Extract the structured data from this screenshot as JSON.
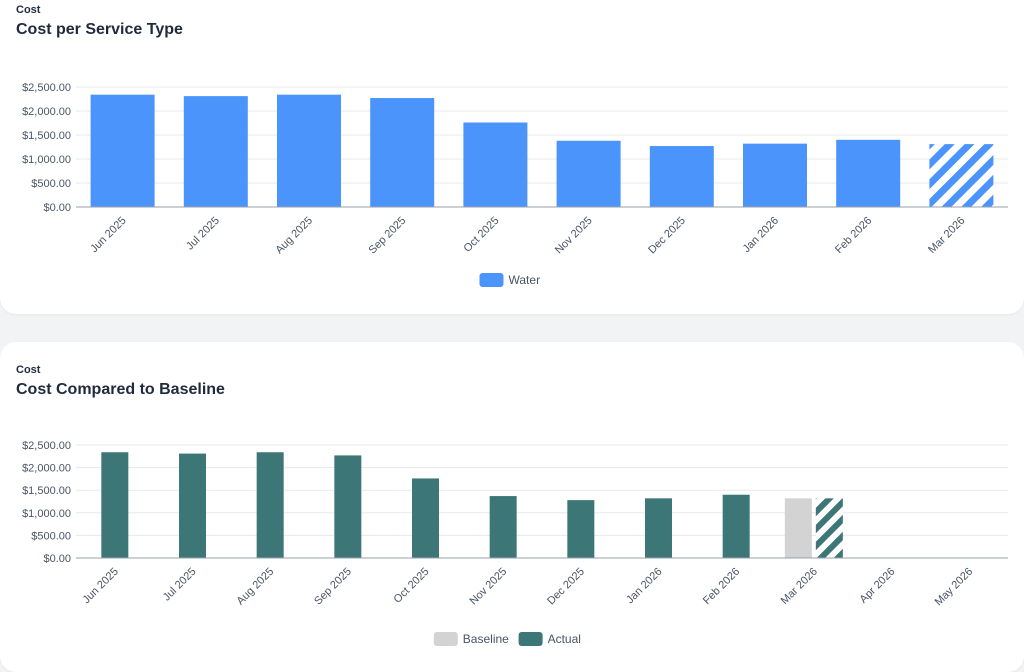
{
  "cards": [
    {
      "eyebrow": "Cost",
      "title": "Cost per Service Type"
    },
    {
      "eyebrow": "Cost",
      "title": "Cost Compared to Baseline"
    }
  ],
  "chart_data": [
    {
      "type": "bar",
      "title": "Cost per Service Type",
      "categories": [
        "Jun 2025",
        "Jul 2025",
        "Aug 2025",
        "Sep 2025",
        "Oct 2025",
        "Nov 2025",
        "Dec 2025",
        "Jan 2026",
        "Feb 2026",
        "Mar 2026"
      ],
      "series": [
        {
          "name": "Water",
          "color": "#4b94fb",
          "values": [
            2340,
            2310,
            2340,
            2270,
            1760,
            1380,
            1270,
            1320,
            1400,
            1310
          ]
        }
      ],
      "projected_categories": [
        "Mar 2026"
      ],
      "ylim": [
        0,
        2500
      ],
      "yticks": [
        "$0.00",
        "$500.00",
        "$1,000.00",
        "$1,500.00",
        "$2,000.00",
        "$2,500.00"
      ],
      "grid": true,
      "legend_position": "bottom-center",
      "legend": [
        {
          "label": "Water",
          "color": "#4b94fb"
        }
      ]
    },
    {
      "type": "bar",
      "title": "Cost Compared to Baseline",
      "categories": [
        "Jun 2025",
        "Jul 2025",
        "Aug 2025",
        "Sep 2025",
        "Oct 2025",
        "Nov 2025",
        "Dec 2025",
        "Jan 2026",
        "Feb 2026",
        "Mar 2026",
        "Apr 2026",
        "May 2026"
      ],
      "series": [
        {
          "name": "Baseline",
          "color": "#d3d3d3",
          "values": [
            null,
            null,
            null,
            null,
            null,
            null,
            null,
            null,
            null,
            1320,
            null,
            null
          ]
        },
        {
          "name": "Actual",
          "color": "#3c7676",
          "values": [
            2340,
            2310,
            2340,
            2270,
            1760,
            1370,
            1280,
            1320,
            1400,
            1320,
            null,
            null
          ]
        }
      ],
      "projected_categories": [
        "Mar 2026"
      ],
      "ylim": [
        0,
        2500
      ],
      "yticks": [
        "$0.00",
        "$500.00",
        "$1,000.00",
        "$1,500.00",
        "$2,000.00",
        "$2,500.00"
      ],
      "grid": true,
      "legend_position": "bottom-center",
      "legend": [
        {
          "label": "Baseline",
          "color": "#d3d3d3"
        },
        {
          "label": "Actual",
          "color": "#3c7676"
        }
      ]
    }
  ]
}
